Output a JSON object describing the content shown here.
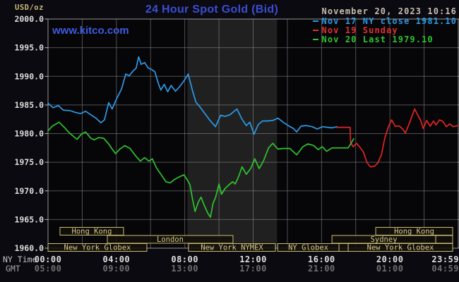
{
  "header": {
    "units_label": "USD/oz",
    "title": "24 Hour Spot Gold (Bid)",
    "site_link": "www.kitco.com",
    "datetime": "November 20, 2023 10:16"
  },
  "legend": {
    "position": "top-right",
    "items": [
      {
        "label": "Nov 17 NY close 1981.10",
        "color": "#2d9ae8"
      },
      {
        "label": "Nov 19 Sunday",
        "color": "#e03030"
      },
      {
        "label": "Nov 20 Last 1979.10",
        "color": "#2fc42f"
      }
    ]
  },
  "chart_data": {
    "type": "line",
    "title": "24 Hour Spot Gold (Bid)",
    "ylabel": "USD/oz",
    "ylim": [
      1960,
      2000
    ],
    "ytick_step": 5,
    "x_hours_range": [
      0,
      24
    ],
    "grid": "on",
    "gridline_interval_hours": 2,
    "nymex_band_hours": [
      8.15,
      13.4
    ],
    "colors": {
      "background": "#0a0a10",
      "plot_bg": "#060608",
      "nymex_band": "#202020",
      "grid": "#9a9a9a",
      "border": "#b8b8b8",
      "y_label": "#dcdcdc",
      "x_label_ny": "#e0e0e0",
      "x_label_gmt": "#707070",
      "axis_header_ny": "#c6c6c6",
      "axis_header_gmt": "#a9a9a9",
      "session_box": "#cdbb72",
      "session_box_fill": "#12100a",
      "session_text": "#d8c786",
      "title": "#3b4ed2",
      "site": "#3f5ae0",
      "datetime": "#c8bdb0",
      "units": "#c9b87a"
    },
    "x_axis": {
      "row1_label": "NY Time",
      "row2_label": "GMT",
      "ticks": [
        {
          "h": 0,
          "ny": "00:00",
          "gmt": "05:00"
        },
        {
          "h": 4,
          "ny": "04:00",
          "gmt": "09:00"
        },
        {
          "h": 8,
          "ny": "08:00",
          "gmt": "13:00"
        },
        {
          "h": 12,
          "ny": "12:00",
          "gmt": "17:00"
        },
        {
          "h": 16,
          "ny": "16:00",
          "gmt": "21:00"
        },
        {
          "h": 20,
          "ny": "20:00",
          "gmt": "01:00"
        },
        {
          "h": 23.983,
          "ny": "23:59",
          "gmt": "04:59"
        }
      ]
    },
    "series": [
      {
        "name": "Nov 17",
        "color": "#2d9ae8",
        "close": 1981.1,
        "points": [
          [
            0,
            1985.3
          ],
          [
            0.3,
            1984.5
          ],
          [
            0.6,
            1984.9
          ],
          [
            0.9,
            1984.1
          ],
          [
            1.3,
            1984.0
          ],
          [
            1.6,
            1983.7
          ],
          [
            1.9,
            1983.5
          ],
          [
            2.2,
            1983.9
          ],
          [
            2.5,
            1983.3
          ],
          [
            2.8,
            1982.7
          ],
          [
            3.1,
            1981.9
          ],
          [
            3.3,
            1982.4
          ],
          [
            3.55,
            1985.4
          ],
          [
            3.75,
            1984.3
          ],
          [
            4.0,
            1986.0
          ],
          [
            4.3,
            1987.8
          ],
          [
            4.55,
            1990.4
          ],
          [
            4.75,
            1990.1
          ],
          [
            5.0,
            1991.0
          ],
          [
            5.15,
            1991.4
          ],
          [
            5.3,
            1993.4
          ],
          [
            5.45,
            1992.1
          ],
          [
            5.65,
            1992.4
          ],
          [
            5.85,
            1991.5
          ],
          [
            6.05,
            1991.2
          ],
          [
            6.25,
            1990.8
          ],
          [
            6.45,
            1988.8
          ],
          [
            6.6,
            1987.6
          ],
          [
            6.8,
            1988.6
          ],
          [
            7.0,
            1987.3
          ],
          [
            7.2,
            1988.4
          ],
          [
            7.45,
            1987.4
          ],
          [
            7.7,
            1988.2
          ],
          [
            7.95,
            1989.2
          ],
          [
            8.2,
            1990.4
          ],
          [
            8.45,
            1987.5
          ],
          [
            8.65,
            1985.5
          ],
          [
            8.9,
            1984.6
          ],
          [
            9.2,
            1983.4
          ],
          [
            9.5,
            1982.2
          ],
          [
            9.8,
            1981.2
          ],
          [
            10.1,
            1983.2
          ],
          [
            10.35,
            1983.0
          ],
          [
            10.65,
            1983.3
          ],
          [
            11.05,
            1984.3
          ],
          [
            11.35,
            1982.5
          ],
          [
            11.6,
            1981.4
          ],
          [
            11.8,
            1982.0
          ],
          [
            12.05,
            1979.9
          ],
          [
            12.3,
            1981.6
          ],
          [
            12.55,
            1982.2
          ],
          [
            12.85,
            1982.2
          ],
          [
            13.15,
            1982.3
          ],
          [
            13.45,
            1982.7
          ],
          [
            13.75,
            1982.0
          ],
          [
            14.05,
            1981.4
          ],
          [
            14.35,
            1980.9
          ],
          [
            14.55,
            1980.3
          ],
          [
            14.8,
            1981.3
          ],
          [
            15.1,
            1981.4
          ],
          [
            15.45,
            1981.2
          ],
          [
            15.75,
            1980.8
          ],
          [
            16.05,
            1981.2
          ],
          [
            16.35,
            1981.1
          ],
          [
            16.6,
            1981.0
          ],
          [
            16.9,
            1981.2
          ]
        ]
      },
      {
        "name": "Nov 19",
        "color": "#e32424",
        "points": [
          [
            16.9,
            1981.1
          ],
          [
            17.67,
            1981.1
          ],
          [
            17.7,
            1978.4
          ],
          [
            17.85,
            1977.7
          ],
          [
            18.05,
            1978.3
          ],
          [
            18.25,
            1977.6
          ],
          [
            18.45,
            1976.8
          ],
          [
            18.65,
            1975.0
          ],
          [
            18.85,
            1974.2
          ],
          [
            19.1,
            1974.3
          ],
          [
            19.3,
            1974.9
          ],
          [
            19.5,
            1976.3
          ],
          [
            19.7,
            1979.2
          ],
          [
            19.9,
            1981.1
          ],
          [
            20.1,
            1982.4
          ],
          [
            20.3,
            1981.3
          ],
          [
            20.55,
            1981.3
          ],
          [
            20.75,
            1980.8
          ],
          [
            20.9,
            1980.1
          ],
          [
            21.1,
            1981.5
          ],
          [
            21.3,
            1983.1
          ],
          [
            21.45,
            1984.3
          ],
          [
            21.6,
            1983.4
          ],
          [
            21.8,
            1982.3
          ],
          [
            21.95,
            1980.9
          ],
          [
            22.15,
            1982.3
          ],
          [
            22.35,
            1981.3
          ],
          [
            22.55,
            1982.2
          ],
          [
            22.7,
            1981.5
          ],
          [
            22.9,
            1982.4
          ],
          [
            23.1,
            1982.1
          ],
          [
            23.3,
            1981.2
          ],
          [
            23.5,
            1981.7
          ],
          [
            23.7,
            1981.2
          ],
          [
            23.98,
            1981.4
          ]
        ]
      },
      {
        "name": "Nov 20",
        "color": "#2fc42f",
        "last": 1979.1,
        "points": [
          [
            0,
            1980.5
          ],
          [
            0.25,
            1981.3
          ],
          [
            0.65,
            1982.0
          ],
          [
            0.95,
            1981.1
          ],
          [
            1.25,
            1980.1
          ],
          [
            1.5,
            1979.5
          ],
          [
            1.7,
            1979.0
          ],
          [
            1.95,
            1979.9
          ],
          [
            2.2,
            1980.3
          ],
          [
            2.5,
            1979.2
          ],
          [
            2.7,
            1978.9
          ],
          [
            2.95,
            1979.3
          ],
          [
            3.25,
            1979.2
          ],
          [
            3.55,
            1978.2
          ],
          [
            3.75,
            1977.3
          ],
          [
            3.95,
            1976.5
          ],
          [
            4.2,
            1977.3
          ],
          [
            4.5,
            1977.9
          ],
          [
            4.8,
            1977.4
          ],
          [
            5.1,
            1976.2
          ],
          [
            5.4,
            1975.2
          ],
          [
            5.65,
            1975.8
          ],
          [
            5.9,
            1975.2
          ],
          [
            6.1,
            1975.6
          ],
          [
            6.35,
            1974.0
          ],
          [
            6.6,
            1972.9
          ],
          [
            6.9,
            1971.6
          ],
          [
            7.15,
            1971.4
          ],
          [
            7.4,
            1972.0
          ],
          [
            7.65,
            1972.4
          ],
          [
            7.95,
            1972.8
          ],
          [
            8.15,
            1971.9
          ],
          [
            8.3,
            1971.1
          ],
          [
            8.45,
            1968.6
          ],
          [
            8.6,
            1966.4
          ],
          [
            8.8,
            1968.1
          ],
          [
            8.95,
            1968.9
          ],
          [
            9.15,
            1967.4
          ],
          [
            9.35,
            1966.1
          ],
          [
            9.5,
            1965.4
          ],
          [
            9.65,
            1967.8
          ],
          [
            9.8,
            1968.8
          ],
          [
            10.0,
            1971.2
          ],
          [
            10.15,
            1969.4
          ],
          [
            10.35,
            1970.4
          ],
          [
            10.6,
            1971.1
          ],
          [
            10.8,
            1971.6
          ],
          [
            10.95,
            1971.2
          ],
          [
            11.15,
            1972.5
          ],
          [
            11.35,
            1974.2
          ],
          [
            11.6,
            1972.9
          ],
          [
            11.85,
            1973.9
          ],
          [
            12.1,
            1975.6
          ],
          [
            12.35,
            1973.9
          ],
          [
            12.6,
            1975.2
          ],
          [
            12.9,
            1977.5
          ],
          [
            13.15,
            1978.3
          ],
          [
            13.45,
            1977.3
          ],
          [
            13.75,
            1977.4
          ],
          [
            14.15,
            1977.4
          ],
          [
            14.55,
            1976.3
          ],
          [
            14.9,
            1977.7
          ],
          [
            15.2,
            1978.2
          ],
          [
            15.55,
            1977.9
          ],
          [
            15.8,
            1977.2
          ],
          [
            16.05,
            1977.7
          ],
          [
            16.3,
            1976.9
          ],
          [
            16.6,
            1977.5
          ],
          [
            17.55,
            1977.5
          ],
          [
            17.75,
            1978.4
          ],
          [
            17.88,
            1979.1
          ]
        ]
      }
    ],
    "sessions": {
      "rows": [
        [
          {
            "label": "Hong Kong",
            "start": 0.7,
            "end": 4.42
          },
          {
            "label": "Hong Kong",
            "start": 19.17,
            "end": 23.67
          }
        ],
        [
          {
            "label": "London",
            "start": 3.47,
            "end": 10.82
          },
          {
            "label": "Sydney",
            "start": 16.61,
            "end": 22.68
          },
          {
            "label": "",
            "start": 22.68,
            "end": 23.67
          }
        ],
        [
          {
            "label": "New York Globex",
            "start": 0,
            "end": 5.78
          },
          {
            "label": "New York NYMEX",
            "start": 8.22,
            "end": 13.3
          },
          {
            "label": "NY Globex",
            "start": 13.43,
            "end": 17.02
          },
          {
            "label": "",
            "start": 17.02,
            "end": 17.56
          },
          {
            "label": "New York Globex",
            "start": 17.56,
            "end": 23.67
          }
        ]
      ]
    }
  }
}
